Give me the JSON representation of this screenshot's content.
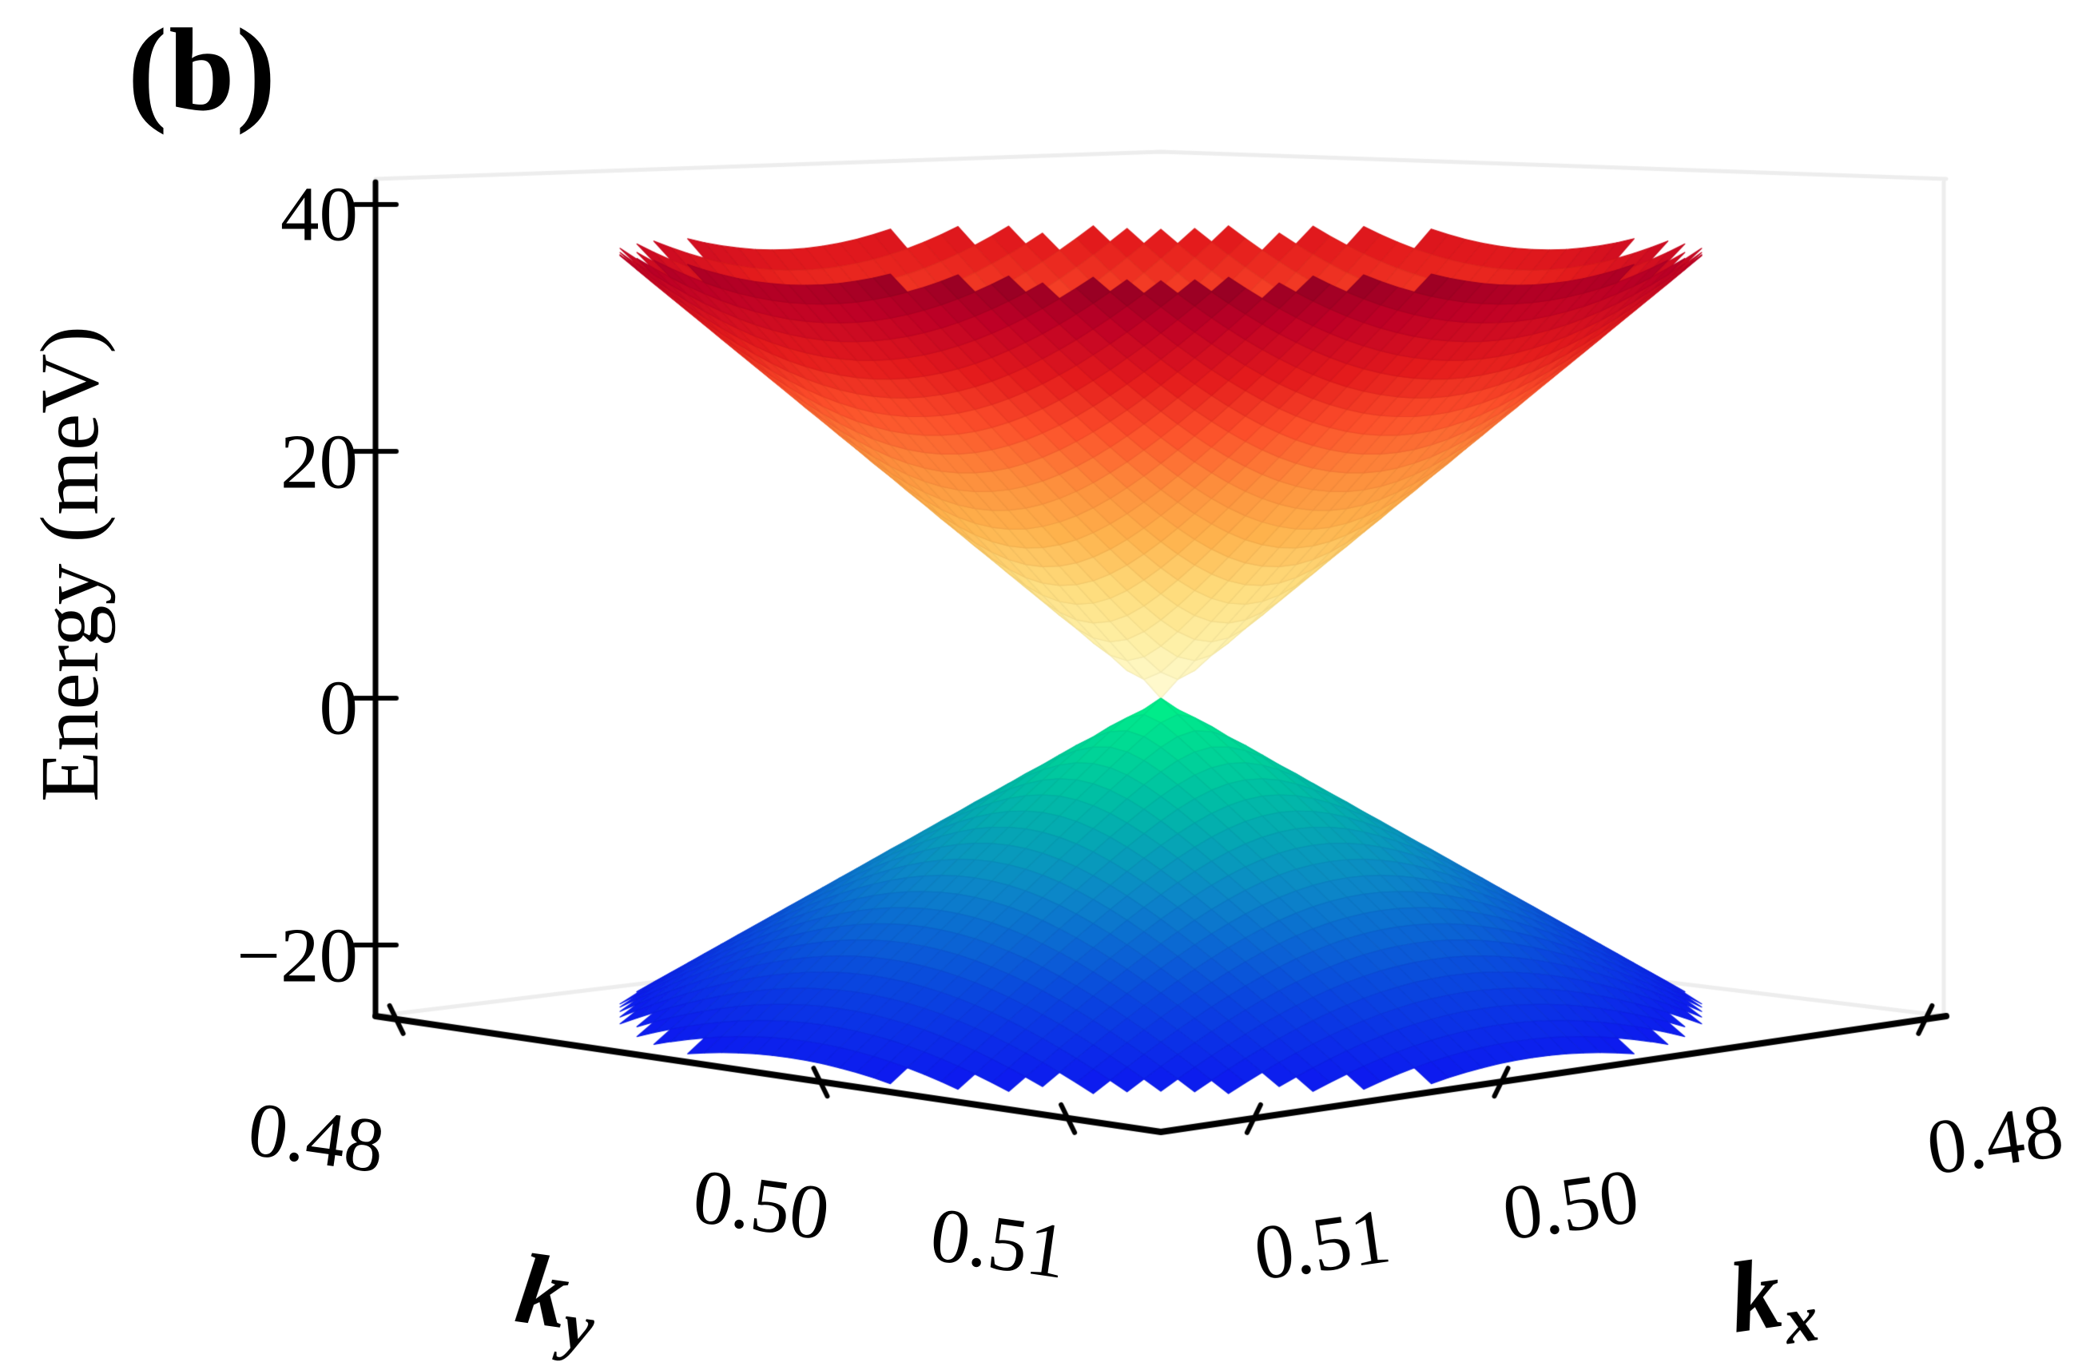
{
  "title": "(b)",
  "axes": {
    "z": {
      "label": "Energy (meV)",
      "ticks": [
        "40",
        "20",
        "0",
        "−20"
      ],
      "tick_values": [
        40,
        20,
        0,
        -20
      ],
      "lim": [
        -25.8,
        41.8
      ]
    },
    "ky": {
      "label_main": "k",
      "label_sub": "y",
      "ticks": [
        "0.48",
        "0.50",
        "0.51"
      ],
      "tick_values": [
        0.48,
        0.5,
        0.51
      ],
      "lim": [
        0.48,
        0.52
      ]
    },
    "kx": {
      "label_main": "k",
      "label_sub": "x",
      "ticks": [
        "0.51",
        "0.50",
        "0.48"
      ],
      "tick_values": [
        0.51,
        0.5,
        0.48
      ],
      "lim": [
        0.48,
        0.52
      ]
    }
  },
  "chart_data": {
    "type": "surface",
    "title": "(b)",
    "description": "3D Dirac-cone band dispersion E(kx,ky) near the K point (0.5,0.5): conduction cone (warm colormap) and valence cone (cool colormap) touching at E=0.",
    "k_center": [
      0.5,
      0.5
    ],
    "k_disk_radius": 0.02,
    "xlabel": "kx",
    "ylabel": "ky",
    "zlabel": "Energy (meV)",
    "zlim": [
      -25.8,
      41.8
    ],
    "grid_n": 46,
    "mask_radius_norm": 0.495,
    "bands": [
      {
        "name": "conduction",
        "apex_energy_meV": 0,
        "rim_energy_side_meV": 36.5,
        "rim_tilt_meV": 4.45,
        "vmax_meV": 41.0,
        "colormap_name": "YlOrRd-like",
        "colormap": [
          [
            0.0,
            "#fffcd8"
          ],
          [
            0.13,
            "#fef0a6"
          ],
          [
            0.25,
            "#fedc7c"
          ],
          [
            0.38,
            "#feb24c"
          ],
          [
            0.5,
            "#fd8d3c"
          ],
          [
            0.63,
            "#fc4e2a"
          ],
          [
            0.75,
            "#e31a1c"
          ],
          [
            0.88,
            "#bd0026"
          ],
          [
            1.0,
            "#870023"
          ]
        ]
      },
      {
        "name": "valence",
        "apex_energy_meV": 0,
        "rim_energy_side_meV": -25.8,
        "rim_tilt_meV": 0.0,
        "vmax_meV": 25.8,
        "colormap_name": "winter-like",
        "colormap": [
          [
            0.0,
            "#00f286"
          ],
          [
            0.25,
            "#00bfa4"
          ],
          [
            0.5,
            "#0c86c8"
          ],
          [
            0.75,
            "#0a47de"
          ],
          [
            1.0,
            "#0d14f2"
          ]
        ]
      }
    ],
    "legend": null,
    "grid": false
  },
  "colors": {
    "background": "#ffffff",
    "axis_line": "#000000",
    "pane_edge": "#ededed"
  }
}
